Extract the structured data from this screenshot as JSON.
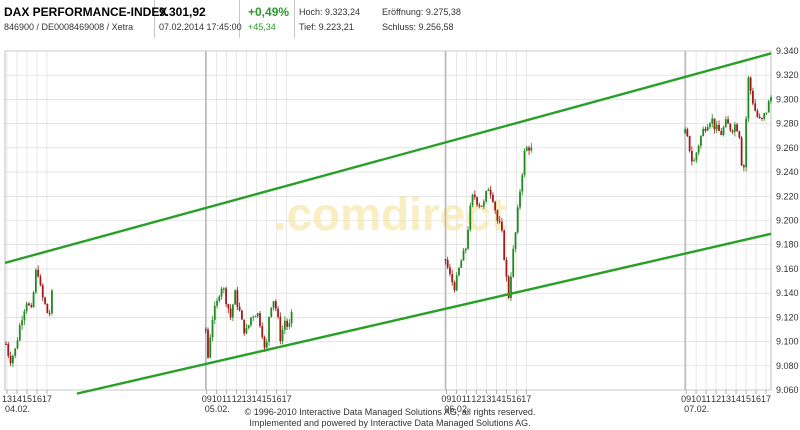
{
  "header": {
    "index_name": "DAX PERFORMANCE-INDEX",
    "id_line": "846900 / DE0008469008 / Xetra",
    "price": "9.301,92",
    "datetime": "07.02.2014 17:45:00",
    "change_pct": "+0,49%",
    "change_abs": "+45,34",
    "high": "Hoch: 9.323,24",
    "open": "Eröffnung: 9.275,38",
    "low": "Tief: 9.223,21",
    "close": "Schluss: 9.256,58"
  },
  "colors": {
    "up": "#1f8a1f",
    "down": "#a11a1a",
    "channel": "#28a028",
    "grid": "#d8d8d8"
  },
  "watermark": ".comdirect",
  "footer": {
    "line1": "© 1996-2010 Interactive Data Managed Solutions AG, all rights reserved.",
    "line2": "Implemented and powered by Interactive Data Managed Solutions AG."
  },
  "chart_data": {
    "type": "candlestick",
    "ylim": [
      9060,
      9340
    ],
    "y_ticks": [
      "9.060",
      "9.080",
      "9.100",
      "9.120",
      "9.140",
      "9.160",
      "9.180",
      "9.200",
      "9.220",
      "9.240",
      "9.260",
      "9.280",
      "9.300",
      "9.320",
      "9.340"
    ],
    "x_tick_labels": [
      "13",
      "14",
      "15",
      "16",
      "17",
      "09",
      "10",
      "11",
      "12",
      "13",
      "14",
      "15",
      "16",
      "17",
      "09",
      "10",
      "11",
      "12",
      "13",
      "14",
      "15",
      "16",
      "17",
      "09",
      "10",
      "11",
      "12",
      "13",
      "14",
      "15",
      "16",
      "17"
    ],
    "x_tick_hours": [
      13,
      14,
      15,
      16,
      17,
      33,
      34,
      35,
      36,
      37,
      38,
      39,
      40,
      41,
      57,
      58,
      59,
      60,
      61,
      62,
      63,
      64,
      65,
      81,
      82,
      83,
      84,
      85,
      86,
      87,
      88,
      89
    ],
    "x_range_hours": [
      12.8,
      89.5
    ],
    "day_labels": [
      {
        "label": "04.02.",
        "hour": 12.8
      },
      {
        "label": "05.02.",
        "hour": 32.8
      },
      {
        "label": "06.02.",
        "hour": 56.8
      },
      {
        "label": "07.02.",
        "hour": 80.8
      }
    ],
    "day_separators_hours": [
      32.9,
      56.9,
      80.9
    ],
    "sessions": [
      {
        "start": 12.9,
        "end": 17.5,
        "points": [
          [
            12.9,
            9098
          ],
          [
            13.3,
            9085
          ],
          [
            13.8,
            9092
          ],
          [
            14.2,
            9110
          ],
          [
            14.6,
            9125
          ],
          [
            15.0,
            9135
          ],
          [
            15.4,
            9122
          ],
          [
            15.8,
            9150
          ],
          [
            16.0,
            9165
          ],
          [
            16.4,
            9140
          ],
          [
            16.8,
            9130
          ],
          [
            17.2,
            9120
          ],
          [
            17.5,
            9138
          ]
        ]
      },
      {
        "start": 32.9,
        "end": 41.5,
        "points": [
          [
            32.9,
            9110
          ],
          [
            33.1,
            9085
          ],
          [
            33.5,
            9118
          ],
          [
            34.0,
            9130
          ],
          [
            34.4,
            9148
          ],
          [
            34.8,
            9140
          ],
          [
            35.4,
            9120
          ],
          [
            35.8,
            9140
          ],
          [
            36.2,
            9128
          ],
          [
            36.6,
            9112
          ],
          [
            37.0,
            9108
          ],
          [
            37.5,
            9122
          ],
          [
            38.0,
            9125
          ],
          [
            38.5,
            9112
          ],
          [
            38.9,
            9085
          ],
          [
            39.2,
            9120
          ],
          [
            39.6,
            9138
          ],
          [
            40.0,
            9125
          ],
          [
            40.4,
            9102
          ],
          [
            40.8,
            9118
          ],
          [
            41.2,
            9110
          ],
          [
            41.5,
            9120
          ]
        ]
      },
      {
        "start": 56.9,
        "end": 65.5,
        "points": [
          [
            56.9,
            9168
          ],
          [
            57.4,
            9152
          ],
          [
            57.9,
            9145
          ],
          [
            58.4,
            9165
          ],
          [
            58.9,
            9175
          ],
          [
            59.3,
            9205
          ],
          [
            59.7,
            9222
          ],
          [
            60.2,
            9215
          ],
          [
            60.7,
            9212
          ],
          [
            61.2,
            9228
          ],
          [
            61.6,
            9222
          ],
          [
            62.1,
            9200
          ],
          [
            62.5,
            9192
          ],
          [
            62.8,
            9170
          ],
          [
            63.2,
            9135
          ],
          [
            63.6,
            9168
          ],
          [
            64.0,
            9195
          ],
          [
            64.4,
            9228
          ],
          [
            64.8,
            9255
          ],
          [
            65.2,
            9262
          ],
          [
            65.5,
            9258
          ]
        ]
      },
      {
        "start": 80.9,
        "end": 89.5,
        "points": [
          [
            80.9,
            9272
          ],
          [
            81.3,
            9262
          ],
          [
            81.7,
            9245
          ],
          [
            82.2,
            9262
          ],
          [
            82.6,
            9272
          ],
          [
            83.0,
            9280
          ],
          [
            83.5,
            9285
          ],
          [
            84.0,
            9275
          ],
          [
            84.5,
            9272
          ],
          [
            85.0,
            9280
          ],
          [
            85.5,
            9276
          ],
          [
            86.0,
            9280
          ],
          [
            86.4,
            9270
          ],
          [
            86.7,
            9230
          ],
          [
            86.9,
            9265
          ],
          [
            87.2,
            9318
          ],
          [
            87.6,
            9302
          ],
          [
            88.0,
            9288
          ],
          [
            88.5,
            9280
          ],
          [
            89.0,
            9290
          ],
          [
            89.5,
            9302
          ]
        ]
      }
    ],
    "channel_lines": [
      {
        "name": "upper",
        "p1": [
          12.8,
          9165
        ],
        "p2": [
          89.5,
          9338
        ]
      },
      {
        "name": "lower",
        "p1": [
          20.0,
          9057
        ],
        "p2": [
          89.5,
          9189
        ]
      }
    ]
  }
}
